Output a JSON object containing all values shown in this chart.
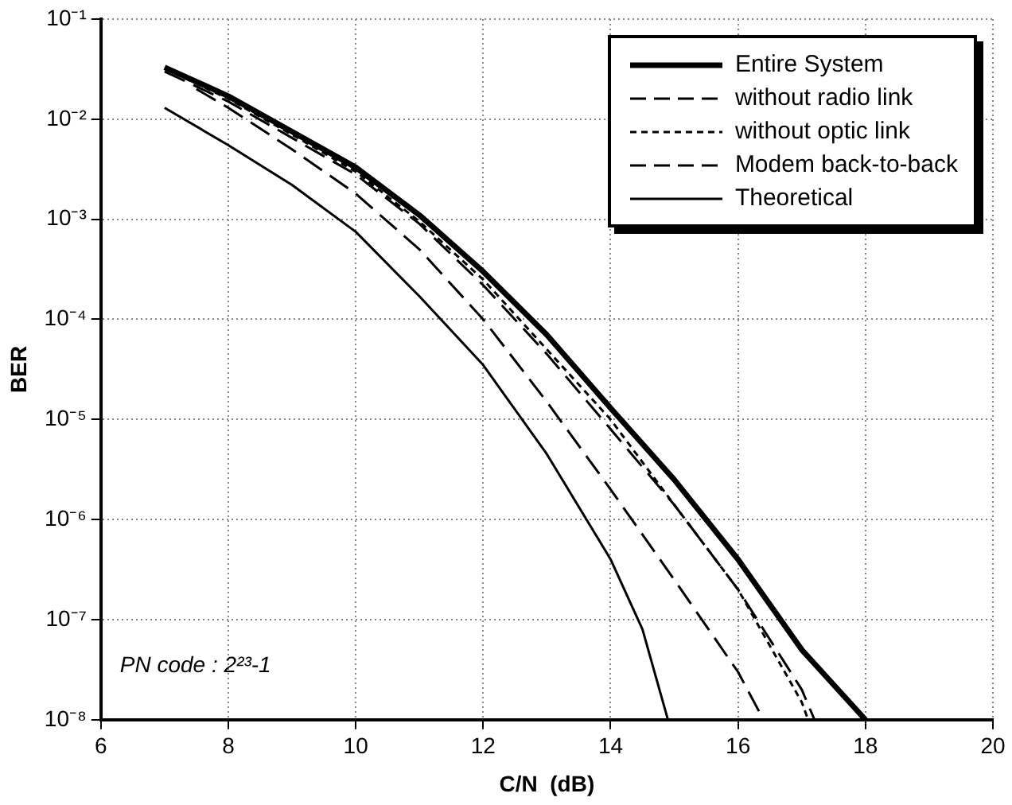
{
  "chart_data": {
    "type": "line",
    "xlabel": "C/N  (dB)",
    "ylabel": "BER",
    "xlim": [
      6,
      20
    ],
    "xticks": [
      6,
      8,
      10,
      12,
      14,
      16,
      18,
      20
    ],
    "ylim": [
      1e-08,
      0.1
    ],
    "yticks": [
      {
        "value": 1e-08,
        "label": "10⁻⁸"
      },
      {
        "value": 1e-07,
        "label": "10⁻⁷"
      },
      {
        "value": 1e-06,
        "label": "10⁻⁶"
      },
      {
        "value": 1e-05,
        "label": "10⁻⁵"
      },
      {
        "value": 0.0001,
        "label": "10⁻⁴"
      },
      {
        "value": 0.001,
        "label": "10⁻³"
      },
      {
        "value": 0.01,
        "label": "10⁻²"
      },
      {
        "value": 0.1,
        "label": "10⁻¹"
      }
    ],
    "log": "y",
    "grid": true,
    "legend": "top right",
    "marker": "none",
    "annotations": [
      "PN code : 2²³-1"
    ],
    "series": [
      {
        "name": "Entire System",
        "color": "#000000",
        "line_style": "solid",
        "x": [
          7,
          8,
          9,
          10,
          11,
          12,
          13,
          14,
          15,
          16,
          17,
          18
        ],
        "values": [
          0.033,
          0.017,
          0.0075,
          0.0033,
          0.0011,
          0.0003,
          7e-05,
          1.3e-05,
          2.5e-06,
          4e-07,
          5e-08,
          1e-08
        ]
      },
      {
        "name": "without radio link",
        "color": "#000000",
        "line_style": "dashed",
        "x": [
          7,
          8,
          9,
          10,
          11,
          12,
          13,
          14,
          15,
          16,
          17,
          17.2
        ],
        "values": [
          0.03,
          0.015,
          0.0065,
          0.0028,
          0.0009,
          0.00022,
          4.5e-05,
          8e-06,
          1.4e-06,
          2e-07,
          2e-08,
          1e-08
        ]
      },
      {
        "name": "without optic link",
        "color": "#000000",
        "line_style": "dotted",
        "x": [
          7,
          8,
          9,
          10,
          11,
          12,
          13,
          14,
          15,
          16,
          17,
          17.1
        ],
        "values": [
          0.032,
          0.016,
          0.007,
          0.003,
          0.00095,
          0.00025,
          5e-05,
          1e-05,
          1.4e-06,
          2e-07,
          1.5e-08,
          1e-08
        ]
      },
      {
        "name": "Modem back-to-back",
        "color": "#000000",
        "line_style": "dashed",
        "x": [
          7.5,
          8,
          9,
          10,
          11,
          12,
          13,
          14,
          15,
          16,
          16.4
        ],
        "values": [
          0.02,
          0.013,
          0.005,
          0.0018,
          0.0005,
          0.0001,
          1.5e-05,
          2e-06,
          2.5e-07,
          3e-08,
          1e-08
        ]
      },
      {
        "name": "Theoretical",
        "color": "#000000",
        "line_style": "solid",
        "x": [
          7,
          8,
          9,
          10,
          11,
          12,
          13,
          14,
          14.5,
          14.9
        ],
        "values": [
          0.013,
          0.0055,
          0.0022,
          0.00075,
          0.00017,
          3.5e-05,
          4.5e-06,
          4e-07,
          8e-08,
          1e-08
        ]
      }
    ]
  }
}
